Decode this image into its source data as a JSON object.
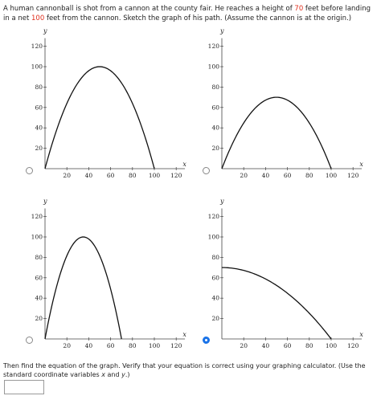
{
  "question": {
    "part1": "A human cannonball is shot from a cannon at the county fair. He reaches a height of ",
    "height": "70",
    "part2": " feet before landing in a net ",
    "distance": "100",
    "part3": " feet from the cannon. Sketch the graph of his path. (Assume the cannon is at the origin.)"
  },
  "axes": {
    "x_label": "x",
    "y_label": "y",
    "x_ticks": [
      "20",
      "40",
      "60",
      "80",
      "100",
      "120"
    ],
    "y_ticks": [
      "20",
      "40",
      "60",
      "80",
      "100",
      "120"
    ]
  },
  "choices": [
    {
      "id": "a",
      "selected": false,
      "curve": "parabola",
      "x_intercept": 100,
      "vertex": [
        50,
        100
      ]
    },
    {
      "id": "b",
      "selected": false,
      "curve": "parabola",
      "x_intercept": 100,
      "vertex": [
        50,
        70
      ]
    },
    {
      "id": "c",
      "selected": false,
      "curve": "parabola",
      "x_intercept": 70,
      "vertex": [
        35,
        100
      ]
    },
    {
      "id": "d",
      "selected": true,
      "curve": "half-parabola",
      "x_intercept": 100,
      "vertex": [
        0,
        70
      ]
    }
  ],
  "followup": {
    "text1": "Then find the equation of the graph. Verify that your equation is correct using your graphing calculator. (Use the standard coordinate variables ",
    "var_x": "x",
    "and": " and ",
    "var_y": "y",
    "text2": ".)"
  },
  "answer": {
    "value": ""
  },
  "colors": {
    "highlight": "#e0301e",
    "radio_selected": "#1a73e8"
  }
}
